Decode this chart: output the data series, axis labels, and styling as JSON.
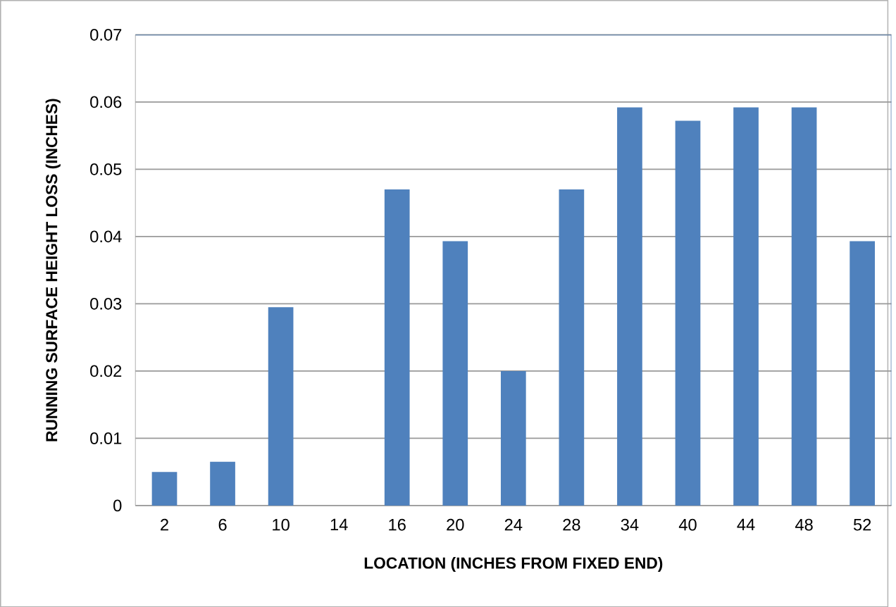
{
  "chart_data": {
    "type": "bar",
    "xlabel": "LOCATION (INCHES FROM FIXED END)",
    "ylabel": "RUNNING SURFACE HEIGHT LOSS (INCHES)",
    "categories": [
      "2",
      "6",
      "10",
      "14",
      "16",
      "20",
      "24",
      "28",
      "34",
      "40",
      "44",
      "48",
      "52"
    ],
    "values": [
      0.005,
      0.0065,
      0.0295,
      0,
      0.047,
      0.0393,
      0.02,
      0.047,
      0.0592,
      0.0572,
      0.0592,
      0.0592,
      0.0393
    ],
    "color": "#4f81bd",
    "ylim": [
      0,
      0.07
    ],
    "yticks": [
      0,
      0.01,
      0.02,
      0.03,
      0.04,
      0.05,
      0.06,
      0.07
    ],
    "grid": "y"
  }
}
